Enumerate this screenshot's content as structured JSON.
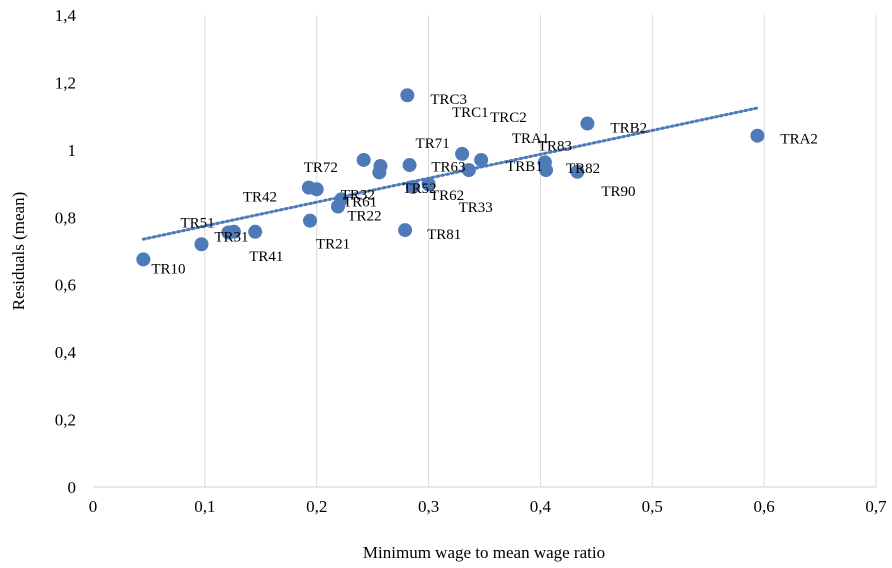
{
  "chart_data": {
    "type": "scatter",
    "title": "",
    "xlabel": "Minimum wage to mean wage ratio",
    "ylabel": "Residuals (mean)",
    "xlim": [
      0,
      0.7
    ],
    "ylim": [
      0,
      1.4
    ],
    "x_ticks": [
      0,
      0.1,
      0.2,
      0.3,
      0.4,
      0.5,
      0.6,
      0.7
    ],
    "x_tick_labels": [
      "0",
      "0,1",
      "0,2",
      "0,3",
      "0,4",
      "0,5",
      "0,6",
      "0,7"
    ],
    "y_ticks": [
      0,
      0.2,
      0.4,
      0.6,
      0.8,
      1.0,
      1.2,
      1.4
    ],
    "y_tick_labels": [
      "0",
      "0,2",
      "0,4",
      "0,6",
      "0,8",
      "1",
      "1,2",
      "1,4"
    ],
    "grid": "vertical",
    "marker_color": "#4e7ab8",
    "trendline": {
      "type": "linear",
      "style": "dotted",
      "color": "#4e7ab8",
      "x": [
        0.045,
        0.595
      ],
      "y": [
        0.735,
        1.125
      ]
    },
    "points": [
      {
        "label": "TR10",
        "x": 0.045,
        "y": 0.675
      },
      {
        "label": "TR51",
        "x": 0.097,
        "y": 0.72
      },
      {
        "label": "TR31",
        "x": 0.121,
        "y": 0.755
      },
      {
        "label": "TR41",
        "x": 0.145,
        "y": 0.757
      },
      {
        "label": "TRC1",
        "x": 0.126,
        "y": 0.757
      },
      {
        "label": "TR42",
        "x": 0.193,
        "y": 0.888
      },
      {
        "label": "TR32",
        "x": 0.2,
        "y": 0.883
      },
      {
        "label": "TR21",
        "x": 0.194,
        "y": 0.79
      },
      {
        "label": "TR61",
        "x": 0.219,
        "y": 0.832
      },
      {
        "label": "TR22",
        "x": 0.222,
        "y": 0.853
      },
      {
        "label": "TR72",
        "x": 0.242,
        "y": 0.97
      },
      {
        "label": "TR52",
        "x": 0.257,
        "y": 0.952
      },
      {
        "label": "TRC3",
        "x": 0.281,
        "y": 1.162
      },
      {
        "label": "TR71",
        "x": 0.283,
        "y": 0.955
      },
      {
        "label": "TR81",
        "x": 0.279,
        "y": 0.762
      },
      {
        "label": "TR62",
        "x": 0.286,
        "y": 0.89
      },
      {
        "label": "TR63",
        "x": 0.256,
        "y": 0.933
      },
      {
        "label": "TR33",
        "x": 0.3,
        "y": 0.898
      },
      {
        "label": "TRC2",
        "x": 0.33,
        "y": 0.988
      },
      {
        "label": "TRA1",
        "x": 0.336,
        "y": 0.94
      },
      {
        "label": "TRB1",
        "x": 0.347,
        "y": 0.97
      },
      {
        "label": "TR83",
        "x": 0.404,
        "y": 0.963
      },
      {
        "label": "TR82",
        "x": 0.405,
        "y": 0.94
      },
      {
        "label": "TRB2",
        "x": 0.442,
        "y": 1.078
      },
      {
        "label": "TR90",
        "x": 0.433,
        "y": 0.935
      },
      {
        "label": "TRA2",
        "x": 0.594,
        "y": 1.042
      }
    ]
  }
}
